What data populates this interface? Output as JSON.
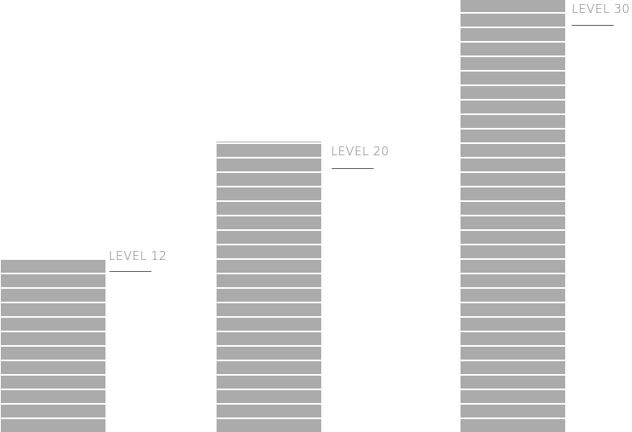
{
  "buildings": [
    {
      "label": "LEVEL 12",
      "floors": 12
    },
    {
      "label": "LEVEL 20",
      "floors": 20
    },
    {
      "label": "LEVEL 30",
      "floors": 30
    }
  ],
  "colors": {
    "floor": "#ababab",
    "label": "#7a7a7a",
    "underline": "#555555",
    "background": "#ffffff"
  }
}
